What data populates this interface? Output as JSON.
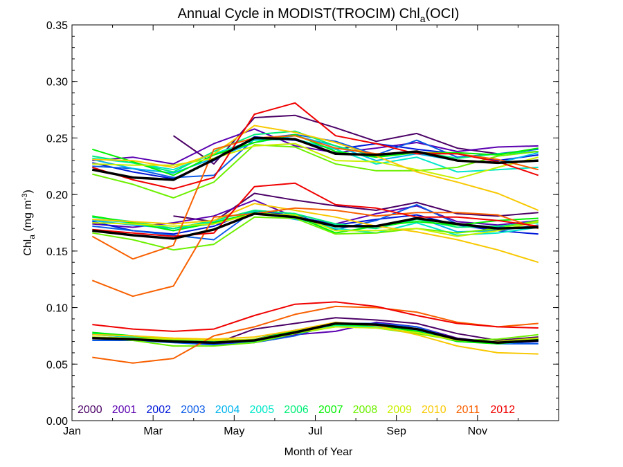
{
  "chart_data": {
    "type": "line",
    "title": {
      "main": "Annual Cycle in MODIST(TROCIM) Chl",
      "sub": "a",
      "tail": "(OCI)"
    },
    "xlabel": "Month of Year",
    "ylabel": {
      "main": "Chl",
      "sub": "a",
      "units_open": " (mg m",
      "units_sup": "-3",
      "units_close": ")"
    },
    "xlim": [
      0,
      12
    ],
    "ylim": [
      0,
      0.35
    ],
    "xticks": [
      {
        "value": 0,
        "label": "Jan"
      },
      {
        "value": 2,
        "label": "Mar"
      },
      {
        "value": 4,
        "label": "May"
      },
      {
        "value": 6,
        "label": "Jul"
      },
      {
        "value": 8,
        "label": "Sep"
      },
      {
        "value": 10,
        "label": "Nov"
      }
    ],
    "yticks": [
      {
        "value": 0,
        "label": "0.00"
      },
      {
        "value": 0.05,
        "label": "0.05"
      },
      {
        "value": 0.1,
        "label": "0.10"
      },
      {
        "value": 0.15,
        "label": "0.15"
      },
      {
        "value": 0.2,
        "label": "0.20"
      },
      {
        "value": 0.25,
        "label": "0.25"
      },
      {
        "value": 0.3,
        "label": "0.30"
      },
      {
        "value": 0.35,
        "label": "0.35"
      }
    ],
    "x": [
      0.5,
      1.5,
      2.5,
      3.5,
      4.5,
      5.5,
      6.5,
      7.5,
      8.5,
      9.5,
      10.5,
      11.5
    ],
    "groups": [
      "upper",
      "middle",
      "lower"
    ],
    "legend_position": "bottom-left",
    "series": [
      {
        "name": "2000",
        "color": "#4b0066",
        "values": {
          "upper": [
            null,
            null,
            0.252,
            0.227,
            0.268,
            0.27,
            0.259,
            0.247,
            0.254,
            0.241,
            0.236,
            0.238
          ],
          "middle": [
            null,
            null,
            0.181,
            0.176,
            0.201,
            0.195,
            0.19,
            0.186,
            0.193,
            0.183,
            0.181,
            0.184
          ],
          "lower": [
            null,
            null,
            0.07,
            0.068,
            0.081,
            0.086,
            0.091,
            0.089,
            0.086,
            0.077,
            0.071,
            0.074
          ]
        }
      },
      {
        "name": "2001",
        "color": "#5a00b0",
        "values": {
          "upper": [
            0.23,
            0.233,
            0.227,
            0.245,
            0.258,
            0.243,
            0.237,
            0.241,
            0.246,
            0.238,
            0.242,
            0.243
          ],
          "middle": [
            0.174,
            0.171,
            0.175,
            0.181,
            0.195,
            0.18,
            0.174,
            0.183,
            0.19,
            0.176,
            0.173,
            0.177
          ],
          "lower": [
            0.076,
            0.074,
            0.071,
            0.068,
            0.07,
            0.076,
            0.079,
            0.087,
            0.083,
            0.073,
            0.069,
            0.072
          ]
        }
      },
      {
        "name": "2002",
        "color": "#0018d8",
        "values": {
          "upper": [
            0.228,
            0.22,
            0.214,
            0.23,
            0.251,
            0.248,
            0.24,
            0.245,
            0.24,
            0.236,
            0.23,
            0.235
          ],
          "middle": [
            0.176,
            0.168,
            0.165,
            0.172,
            0.186,
            0.181,
            0.173,
            0.178,
            0.182,
            0.173,
            0.168,
            0.165
          ],
          "lower": [
            0.073,
            0.071,
            0.07,
            0.068,
            0.072,
            0.08,
            0.085,
            0.084,
            0.081,
            0.072,
            0.068,
            0.07
          ]
        }
      },
      {
        "name": "2003",
        "color": "#0a5ae6",
        "values": {
          "upper": [
            0.225,
            0.223,
            0.215,
            0.217,
            0.249,
            0.253,
            0.247,
            0.235,
            0.248,
            0.233,
            0.236,
            0.24
          ],
          "middle": [
            0.172,
            0.168,
            0.164,
            0.16,
            0.186,
            0.183,
            0.169,
            0.177,
            0.191,
            0.174,
            0.171,
            0.177
          ],
          "lower": [
            0.071,
            0.071,
            0.069,
            0.067,
            0.069,
            0.075,
            0.086,
            0.086,
            0.083,
            0.072,
            0.068,
            0.068
          ]
        }
      },
      {
        "name": "2004",
        "color": "#00b4ee",
        "values": {
          "upper": [
            0.231,
            0.223,
            0.219,
            0.232,
            0.246,
            0.252,
            0.243,
            0.23,
            0.236,
            0.23,
            0.228,
            0.237
          ],
          "middle": [
            0.177,
            0.173,
            0.17,
            0.174,
            0.185,
            0.178,
            0.173,
            0.17,
            0.18,
            0.167,
            0.168,
            0.173
          ],
          "lower": [
            0.074,
            0.072,
            0.07,
            0.069,
            0.071,
            0.078,
            0.084,
            0.083,
            0.08,
            0.071,
            0.068,
            0.071
          ]
        }
      },
      {
        "name": "2005",
        "color": "#00e8c8",
        "values": {
          "upper": [
            0.232,
            0.228,
            0.222,
            0.236,
            0.248,
            0.249,
            0.24,
            0.227,
            0.233,
            0.22,
            0.222,
            0.224
          ],
          "middle": [
            0.178,
            0.175,
            0.168,
            0.176,
            0.183,
            0.179,
            0.17,
            0.166,
            0.175,
            0.164,
            0.166,
            0.171
          ],
          "lower": [
            0.076,
            0.074,
            0.071,
            0.069,
            0.07,
            0.078,
            0.084,
            0.083,
            0.08,
            0.071,
            0.068,
            0.071
          ]
        }
      },
      {
        "name": "2006",
        "color": "#00ee78",
        "values": {
          "upper": [
            0.234,
            0.228,
            0.22,
            0.238,
            0.253,
            0.256,
            0.243,
            0.234,
            0.238,
            0.232,
            0.236,
            0.238
          ],
          "middle": [
            0.18,
            0.176,
            0.17,
            0.177,
            0.186,
            0.183,
            0.174,
            0.17,
            0.178,
            0.171,
            0.172,
            0.175
          ],
          "lower": [
            0.077,
            0.075,
            0.072,
            0.07,
            0.072,
            0.079,
            0.085,
            0.084,
            0.081,
            0.072,
            0.069,
            0.072
          ]
        }
      },
      {
        "name": "2007",
        "color": "#00f000",
        "values": {
          "upper": [
            0.24,
            0.229,
            0.217,
            0.235,
            0.246,
            0.253,
            0.238,
            0.233,
            0.237,
            0.237,
            0.235,
            0.241
          ],
          "middle": [
            0.181,
            0.175,
            0.168,
            0.175,
            0.184,
            0.181,
            0.166,
            0.172,
            0.176,
            0.173,
            0.177,
            0.179
          ],
          "lower": [
            0.078,
            0.075,
            0.071,
            0.069,
            0.072,
            0.079,
            0.085,
            0.084,
            0.079,
            0.07,
            0.068,
            0.072
          ]
        }
      },
      {
        "name": "2008",
        "color": "#6cf000",
        "values": {
          "upper": [
            0.218,
            0.209,
            0.197,
            0.211,
            0.244,
            0.242,
            0.227,
            0.221,
            0.221,
            0.224,
            0.234,
            0.238
          ],
          "middle": [
            0.166,
            0.16,
            0.151,
            0.156,
            0.18,
            0.179,
            0.165,
            0.166,
            0.17,
            0.166,
            0.17,
            0.177
          ],
          "lower": [
            0.074,
            0.071,
            0.066,
            0.066,
            0.069,
            0.077,
            0.083,
            0.082,
            0.077,
            0.071,
            0.072,
            0.076
          ]
        }
      },
      {
        "name": "2009",
        "color": "#c8f000",
        "values": {
          "upper": [
            0.227,
            0.226,
            0.226,
            0.232,
            0.243,
            0.245,
            0.23,
            0.229,
            0.222,
            0.214,
            0.224,
            0.233
          ],
          "middle": [
            0.175,
            0.174,
            0.172,
            0.174,
            0.183,
            0.182,
            0.168,
            0.168,
            0.17,
            0.163,
            0.168,
            0.176
          ],
          "lower": [
            0.074,
            0.073,
            0.072,
            0.071,
            0.072,
            0.078,
            0.083,
            0.082,
            0.078,
            0.071,
            0.07,
            0.073
          ]
        }
      },
      {
        "name": "2010",
        "color": "#f8c800",
        "values": {
          "upper": [
            0.231,
            0.23,
            0.224,
            0.236,
            0.261,
            0.255,
            0.246,
            0.234,
            0.22,
            0.211,
            0.201,
            0.186
          ],
          "middle": [
            0.178,
            0.176,
            0.174,
            0.177,
            0.192,
            0.186,
            0.18,
            0.172,
            0.167,
            0.16,
            0.151,
            0.14
          ],
          "lower": [
            0.076,
            0.075,
            0.073,
            0.072,
            0.074,
            0.08,
            0.087,
            0.084,
            0.076,
            0.066,
            0.06,
            0.059
          ]
        }
      },
      {
        "name": "2011",
        "color": "#f86000",
        "values": {
          "upper": [
            0.163,
            0.143,
            0.155,
            0.24,
            0.25,
            0.252,
            0.241,
            0.236,
            0.237,
            0.236,
            0.231,
            0.222
          ],
          "middle": [
            0.124,
            0.11,
            0.119,
            0.18,
            0.183,
            0.188,
            0.186,
            0.181,
            0.184,
            0.184,
            0.182,
            0.17
          ],
          "lower": [
            0.056,
            0.051,
            0.055,
            0.075,
            0.083,
            0.094,
            0.101,
            0.1,
            0.096,
            0.087,
            0.083,
            0.086
          ]
        }
      },
      {
        "name": "2012",
        "color": "#f00000",
        "values": {
          "upper": [
            0.224,
            0.213,
            0.205,
            0.215,
            0.271,
            0.281,
            0.252,
            0.245,
            0.236,
            0.236,
            0.229,
            0.217
          ],
          "middle": [
            0.169,
            0.166,
            0.163,
            0.166,
            0.207,
            0.21,
            0.191,
            0.188,
            0.18,
            0.18,
            0.177,
            0.172
          ],
          "lower": [
            0.085,
            0.081,
            0.079,
            0.081,
            0.093,
            0.103,
            0.105,
            0.101,
            0.093,
            0.086,
            0.083,
            0.082
          ]
        }
      }
    ],
    "mean_series": {
      "color": "#000000",
      "values": {
        "upper": [
          0.222,
          0.215,
          0.213,
          0.231,
          0.25,
          0.249,
          0.236,
          0.235,
          0.238,
          0.23,
          0.228,
          0.23
        ],
        "middle": [
          0.168,
          0.164,
          0.161,
          0.169,
          0.183,
          0.18,
          0.172,
          0.172,
          0.179,
          0.174,
          0.17,
          0.171
        ],
        "lower": [
          0.073,
          0.072,
          0.07,
          0.069,
          0.071,
          0.078,
          0.086,
          0.085,
          0.081,
          0.072,
          0.069,
          0.071
        ]
      }
    }
  }
}
